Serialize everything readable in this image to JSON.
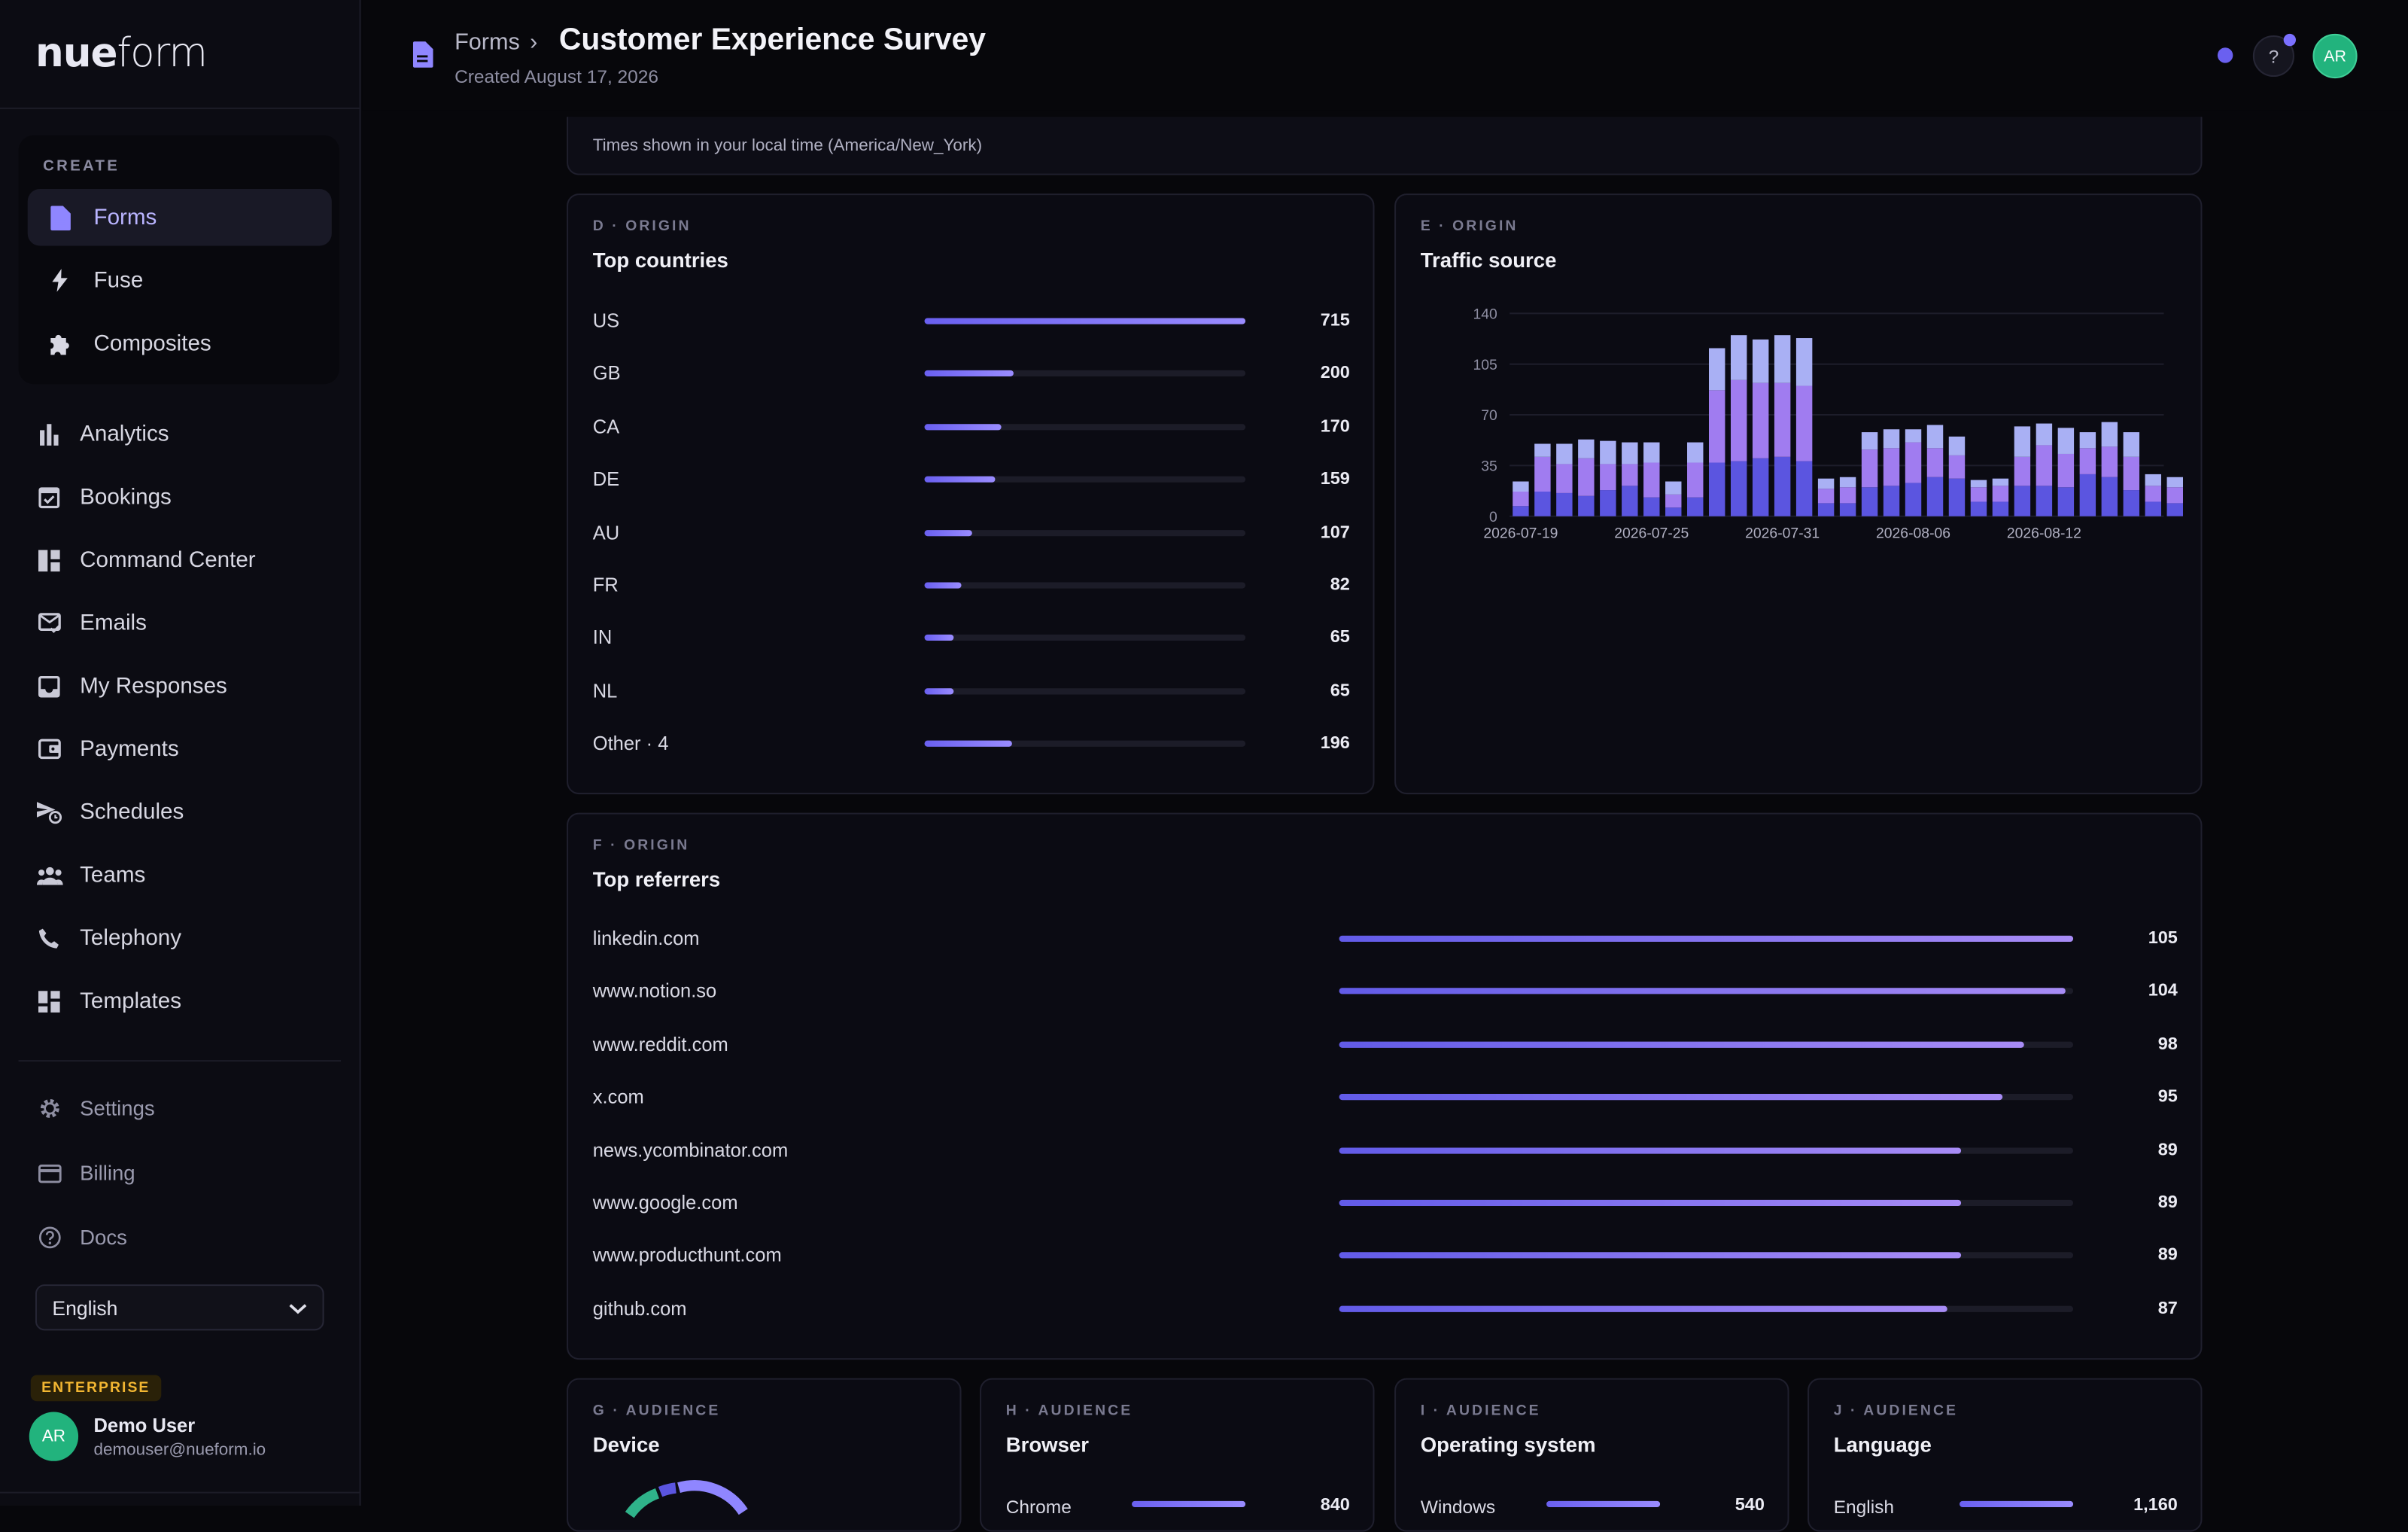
{
  "app": {
    "logo_bold": "nue",
    "logo_light": "form"
  },
  "sidebar": {
    "create_label": "CREATE",
    "create_items": [
      {
        "label": "Forms",
        "icon": "document-icon",
        "active": true
      },
      {
        "label": "Fuse",
        "icon": "bolt-icon",
        "active": false
      },
      {
        "label": "Composites",
        "icon": "puzzle-icon",
        "active": false
      }
    ],
    "main_items": [
      {
        "label": "Analytics",
        "icon": "bar-chart-icon"
      },
      {
        "label": "Bookings",
        "icon": "calendar-check-icon"
      },
      {
        "label": "Command Center",
        "icon": "dashboard-icon"
      },
      {
        "label": "Emails",
        "icon": "mail-check-icon"
      },
      {
        "label": "My Responses",
        "icon": "inbox-icon"
      },
      {
        "label": "Payments",
        "icon": "wallet-icon"
      },
      {
        "label": "Schedules",
        "icon": "schedule-send-icon"
      },
      {
        "label": "Teams",
        "icon": "people-icon"
      },
      {
        "label": "Telephony",
        "icon": "phone-icon"
      },
      {
        "label": "Templates",
        "icon": "grid-icon"
      }
    ],
    "secondary_items": [
      {
        "label": "Settings",
        "icon": "gear-icon"
      },
      {
        "label": "Billing",
        "icon": "credit-card-icon"
      },
      {
        "label": "Docs",
        "icon": "help-circle-icon"
      }
    ],
    "language": "English",
    "plan_badge": "ENTERPRISE",
    "user": {
      "initials": "AR",
      "name": "Demo User",
      "email": "demouser@nueform.io"
    }
  },
  "header": {
    "breadcrumb": "Forms",
    "breadcrumb_separator": "›",
    "title": "Customer Experience Survey",
    "created": "Created August 17, 2026",
    "help_label": "?",
    "avatar_initials": "AR"
  },
  "timezone_note": "Times shown in your local time (America/New_York)",
  "top_countries": {
    "kicker": "D · ORIGIN",
    "title": "Top countries",
    "max": 715,
    "rows": [
      {
        "label": "US",
        "value": 715
      },
      {
        "label": "GB",
        "value": 200
      },
      {
        "label": "CA",
        "value": 170
      },
      {
        "label": "DE",
        "value": 159
      },
      {
        "label": "AU",
        "value": 107
      },
      {
        "label": "FR",
        "value": 82
      },
      {
        "label": "IN",
        "value": 65
      },
      {
        "label": "NL",
        "value": 65
      },
      {
        "label": "Other · 4",
        "value": 196
      }
    ]
  },
  "traffic_source": {
    "kicker": "E · ORIGIN",
    "title": "Traffic source"
  },
  "chart_data": {
    "type": "bar",
    "stacked": true,
    "yticks": [
      0,
      35,
      70,
      105,
      140
    ],
    "ylim": [
      0,
      140
    ],
    "xtick_labels": [
      "2026-07-19",
      "2026-07-25",
      "2026-07-31",
      "2026-08-06",
      "2026-08-12"
    ],
    "xtick_positions": [
      0,
      6,
      12,
      18,
      24
    ],
    "grid": true,
    "colors": [
      "#5b55e0",
      "#a07cf0",
      "#a9b0f4"
    ],
    "series": [
      {
        "values": [
          7,
          17,
          16,
          14,
          18,
          21,
          13,
          6,
          13,
          37,
          38,
          40,
          41,
          38,
          9,
          9,
          20,
          21,
          23,
          27,
          26,
          10,
          10,
          21,
          21,
          20,
          29,
          27,
          18,
          10,
          9
        ]
      },
      {
        "values": [
          10,
          24,
          20,
          26,
          18,
          15,
          24,
          9,
          24,
          50,
          56,
          52,
          51,
          52,
          10,
          11,
          26,
          26,
          28,
          20,
          16,
          10,
          11,
          20,
          28,
          23,
          18,
          21,
          23,
          11,
          11
        ]
      },
      {
        "values": [
          7,
          9,
          14,
          13,
          16,
          15,
          14,
          9,
          14,
          29,
          31,
          30,
          33,
          33,
          7,
          7,
          12,
          13,
          9,
          16,
          13,
          5,
          5,
          21,
          15,
          18,
          11,
          17,
          17,
          8,
          7
        ]
      }
    ]
  },
  "top_referrers": {
    "kicker": "F · ORIGIN",
    "title": "Top referrers",
    "max": 105,
    "rows": [
      {
        "label": "linkedin.com",
        "value": 105
      },
      {
        "label": "www.notion.so",
        "value": 104
      },
      {
        "label": "www.reddit.com",
        "value": 98
      },
      {
        "label": "x.com",
        "value": 95
      },
      {
        "label": "news.ycombinator.com",
        "value": 89
      },
      {
        "label": "www.google.com",
        "value": 89
      },
      {
        "label": "www.producthunt.com",
        "value": 89
      },
      {
        "label": "github.com",
        "value": 87
      }
    ]
  },
  "audience_cards": [
    {
      "kicker": "G · AUDIENCE",
      "title": "Device"
    },
    {
      "kicker": "H · AUDIENCE",
      "title": "Browser",
      "first_row": {
        "label": "Chrome",
        "value": "840"
      }
    },
    {
      "kicker": "I · AUDIENCE",
      "title": "Operating system",
      "first_row": {
        "label": "Windows",
        "value": "540"
      }
    },
    {
      "kicker": "J · AUDIENCE",
      "title": "Language",
      "first_row": {
        "label": "English",
        "value": "1,160"
      }
    }
  ]
}
